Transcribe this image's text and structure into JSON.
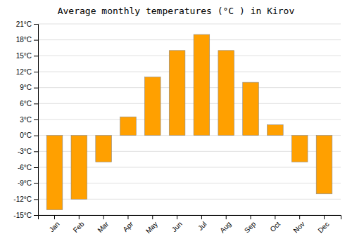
{
  "chart_data": {
    "type": "bar",
    "title": "Average monthly temperatures (°C ) in Kirov",
    "categories": [
      "Jan",
      "Feb",
      "Mar",
      "Apr",
      "May",
      "Jun",
      "Jul",
      "Aug",
      "Sep",
      "Oct",
      "Nov",
      "Dec"
    ],
    "values": [
      -14,
      -12,
      -5,
      3.5,
      11,
      16,
      19,
      16,
      10,
      2,
      -5,
      -11
    ],
    "color": "#FFA000",
    "ylim": [
      -15,
      21
    ],
    "yticks": [
      {
        "value": -15,
        "label": "-15°C"
      },
      {
        "value": -12,
        "label": "-12°C"
      },
      {
        "value": -9,
        "label": "-9°C"
      },
      {
        "value": -6,
        "label": "-6°C"
      },
      {
        "value": -3,
        "label": "-3°C"
      },
      {
        "value": 0,
        "label": "0°C"
      },
      {
        "value": 3,
        "label": "3°C"
      },
      {
        "value": 6,
        "label": "6°C"
      },
      {
        "value": 9,
        "label": "9°C"
      },
      {
        "value": 12,
        "label": "12°C"
      },
      {
        "value": 15,
        "label": "15°C"
      },
      {
        "value": 18,
        "label": "18°C"
      },
      {
        "value": 21,
        "label": "21°C"
      }
    ],
    "grid": true
  }
}
